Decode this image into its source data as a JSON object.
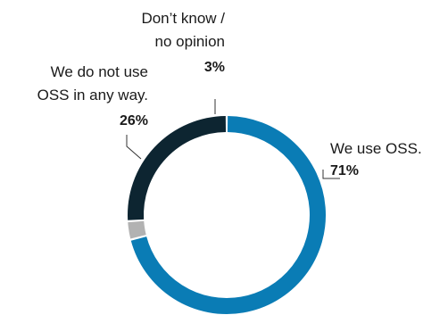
{
  "chart_data": {
    "type": "pie",
    "title": "",
    "series": [
      {
        "label_lines": [
          "We use OSS."
        ],
        "value": 71,
        "value_label": "71%",
        "color": "#0a7cb5"
      },
      {
        "label_lines": [
          "Don’t know /",
          "no opinion"
        ],
        "value": 3,
        "value_label": "3%",
        "color": "#b2b2b2"
      },
      {
        "label_lines": [
          "We do not use",
          "OSS in any way."
        ],
        "value": 26,
        "value_label": "26%",
        "color": "#0d2531"
      }
    ],
    "donut": true,
    "legend": "none"
  }
}
